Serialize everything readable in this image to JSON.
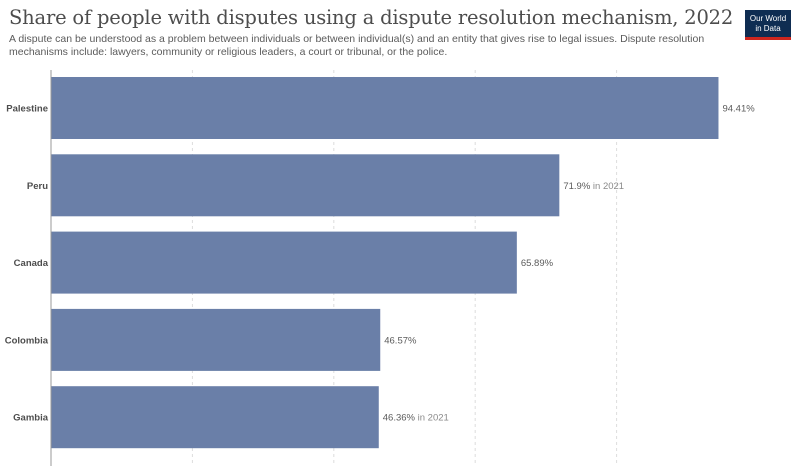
{
  "header": {
    "title": "Share of people with disputes using a dispute resolution mechanism, 2022",
    "subtitle": "A dispute can be understood as a problem between individuals or between individual(s) and an entity that gives rise to legal issues. Dispute resolution mechanisms include: lawyers, community or religious leaders, a court or tribunal, or the police."
  },
  "logo": {
    "line1": "Our World",
    "line2": "in Data",
    "bg": "#0f2d52",
    "accent": "#ce261e"
  },
  "colors": {
    "bar": "#6a7fa8",
    "grid": "#dddddd",
    "axis": "#999999"
  },
  "chart_data": {
    "type": "bar",
    "orientation": "horizontal",
    "title": "Share of people with disputes using a dispute resolution mechanism, 2022",
    "unit": "%",
    "categories": [
      "Palestine",
      "Peru",
      "Canada",
      "Colombia",
      "Gambia"
    ],
    "values": [
      94.41,
      71.9,
      65.89,
      46.57,
      46.36
    ],
    "value_labels": [
      "94.41%",
      "71.9%",
      "65.89%",
      "46.57%",
      "46.36%"
    ],
    "notes": [
      "",
      "in 2021",
      "",
      "",
      "in 2021"
    ],
    "xlim": [
      0,
      100
    ],
    "gridlines": [
      0,
      20,
      40,
      60,
      80
    ],
    "grid": true
  }
}
